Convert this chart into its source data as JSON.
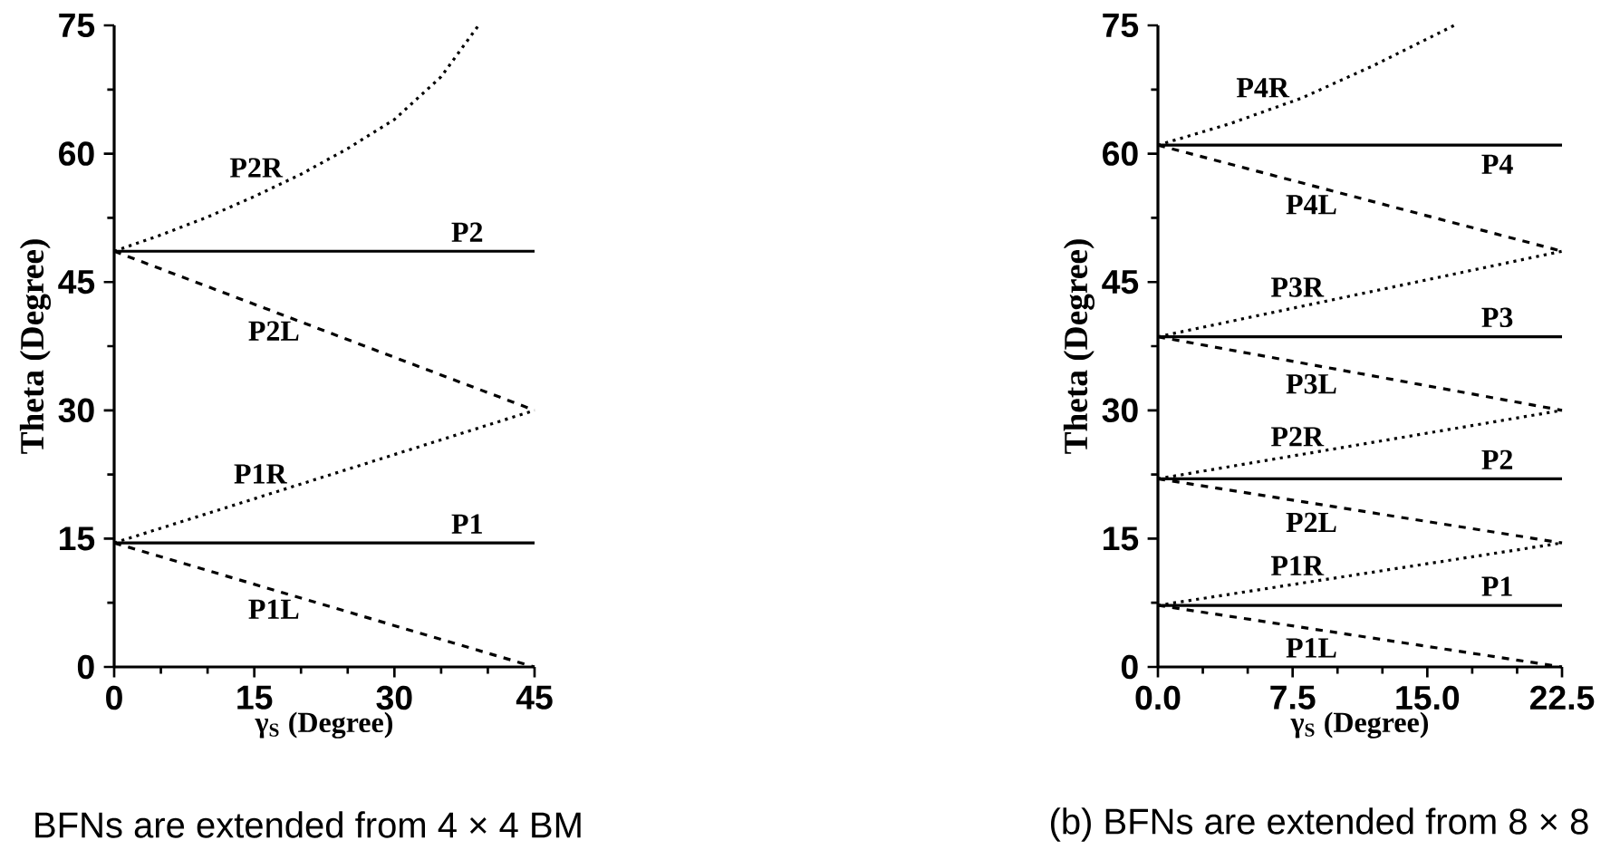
{
  "chart_data": [
    {
      "type": "line",
      "xlabel": "γ$_{S}$ (Degree)",
      "ylabel": "Theta  (Degree)",
      "xlim": [
        0,
        45
      ],
      "ylim": [
        0,
        75
      ],
      "xticks": [
        0,
        15,
        30,
        45
      ],
      "yticks": [
        0,
        15,
        30,
        45,
        60,
        75
      ],
      "marker": "none",
      "series": [
        {
          "name": "P1",
          "color": "#000000",
          "line_style": "solid",
          "x": [
            0,
            45
          ],
          "values": [
            14.5,
            14.5
          ]
        },
        {
          "name": "P1L",
          "color": "#000000",
          "line_style": "dashed",
          "x": [
            0,
            45
          ],
          "values": [
            14.5,
            0
          ]
        },
        {
          "name": "P1R",
          "color": "#000000",
          "line_style": "dotted",
          "x": [
            0,
            45
          ],
          "values": [
            14.5,
            30
          ]
        },
        {
          "name": "P2",
          "color": "#000000",
          "line_style": "solid",
          "x": [
            0,
            45
          ],
          "values": [
            48.6,
            48.6
          ]
        },
        {
          "name": "P2L",
          "color": "#000000",
          "line_style": "dashed",
          "x": [
            0,
            45
          ],
          "values": [
            48.6,
            30
          ]
        },
        {
          "name": "P2R",
          "color": "#000000",
          "line_style": "dotted",
          "x": [
            0,
            5,
            10,
            15,
            20,
            25,
            30,
            35,
            39
          ],
          "values": [
            48.6,
            50.5,
            52.6,
            55,
            57.6,
            60.6,
            64,
            69,
            75
          ]
        }
      ],
      "annotations": [
        "BFNs are extended from 4 × 4 BM"
      ]
    },
    {
      "type": "line",
      "xlabel": "γ$_{S}$ (Degree)",
      "ylabel": "Theta  (Degree)",
      "xlim": [
        0,
        22.5
      ],
      "ylim": [
        0,
        75
      ],
      "xticks": [
        {
          "value": 0,
          "label": "0.0"
        },
        7.5,
        {
          "value": 15,
          "label": "15.0"
        },
        22.5
      ],
      "yticks": [
        0,
        15,
        30,
        45,
        60,
        75
      ],
      "marker": "none",
      "series": [
        {
          "name": "P1",
          "color": "#000000",
          "line_style": "solid",
          "x": [
            0,
            22.5
          ],
          "values": [
            7.2,
            7.2
          ]
        },
        {
          "name": "P1L",
          "color": "#000000",
          "line_style": "dashed",
          "x": [
            0,
            22.5
          ],
          "values": [
            7.2,
            0
          ]
        },
        {
          "name": "P1R",
          "color": "#000000",
          "line_style": "dotted",
          "x": [
            0,
            22.5
          ],
          "values": [
            7.2,
            14.5
          ]
        },
        {
          "name": "P2",
          "color": "#000000",
          "line_style": "solid",
          "x": [
            0,
            22.5
          ],
          "values": [
            22,
            22
          ]
        },
        {
          "name": "P2L",
          "color": "#000000",
          "line_style": "dashed",
          "x": [
            0,
            22.5
          ],
          "values": [
            22,
            14.5
          ]
        },
        {
          "name": "P2R",
          "color": "#000000",
          "line_style": "dotted",
          "x": [
            0,
            22.5
          ],
          "values": [
            22,
            30
          ]
        },
        {
          "name": "P3",
          "color": "#000000",
          "line_style": "solid",
          "x": [
            0,
            22.5
          ],
          "values": [
            38.6,
            38.6
          ]
        },
        {
          "name": "P3L",
          "color": "#000000",
          "line_style": "dashed",
          "x": [
            0,
            22.5
          ],
          "values": [
            38.6,
            30
          ]
        },
        {
          "name": "P3R",
          "color": "#000000",
          "line_style": "dotted",
          "x": [
            0,
            22.5
          ],
          "values": [
            38.6,
            48.6
          ]
        },
        {
          "name": "P4",
          "color": "#000000",
          "line_style": "solid",
          "x": [
            0,
            22.5
          ],
          "values": [
            61,
            61
          ]
        },
        {
          "name": "P4L",
          "color": "#000000",
          "line_style": "dashed",
          "x": [
            0,
            22.5
          ],
          "values": [
            61,
            48.6
          ]
        },
        {
          "name": "P4R",
          "color": "#000000",
          "line_style": "dotted",
          "x": [
            0,
            4,
            8,
            12,
            16.5
          ],
          "values": [
            61,
            63.5,
            66.5,
            70.3,
            75
          ]
        }
      ],
      "annotations": [
        "(b) BFNs are extended from 8 × 8"
      ]
    }
  ]
}
